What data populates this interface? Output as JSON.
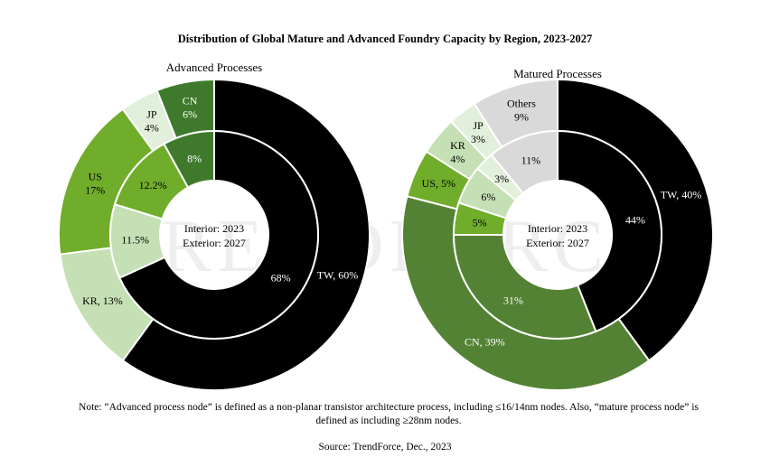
{
  "chart_data": {
    "type": "donut",
    "title": "Distribution of Global Mature and Advanced Foundry Capacity by Region, 2023-2027",
    "charts": [
      {
        "subtitle": "Advanced Processes",
        "center_line1": "Interior: 2023",
        "center_line2": "Exterior: 2027",
        "inner": [
          {
            "name": "TW",
            "value": 68,
            "label": "68%",
            "color": "#000000",
            "text_color": "#ffffff"
          },
          {
            "name": "KR",
            "value": 11.5,
            "label": "11.5%",
            "color": "#c5e0b4",
            "text_color": "#000000"
          },
          {
            "name": "US",
            "value": 12.2,
            "label": "12.2%",
            "color": "#70ad2a",
            "text_color": "#000000"
          },
          {
            "name": "CN",
            "value": 8,
            "label": "8%",
            "color": "#3f7a2c",
            "text_color": "#ffffff"
          }
        ],
        "outer": [
          {
            "name": "TW",
            "value": 60,
            "label": "TW, 60%",
            "color": "#000000",
            "text_color": "#ffffff"
          },
          {
            "name": "KR",
            "value": 13,
            "label": "KR, 13%",
            "color": "#c5e0b4",
            "text_color": "#000000"
          },
          {
            "name": "US",
            "value": 17,
            "label": "US\n17%",
            "color": "#70ad2a",
            "text_color": "#000000"
          },
          {
            "name": "JP",
            "value": 4,
            "label": "JP\n4%",
            "color": "#e2efda",
            "text_color": "#000000"
          },
          {
            "name": "CN",
            "value": 6,
            "label": "CN\n6%",
            "color": "#3f7a2c",
            "text_color": "#ffffff"
          }
        ]
      },
      {
        "subtitle": "Matured Processes",
        "center_line1": "Interior: 2023",
        "center_line2": "Exterior: 2027",
        "inner": [
          {
            "name": "TW",
            "value": 44,
            "label": "44%",
            "color": "#000000",
            "text_color": "#ffffff"
          },
          {
            "name": "CN",
            "value": 31,
            "label": "31%",
            "color": "#548235",
            "text_color": "#ffffff"
          },
          {
            "name": "US",
            "value": 5,
            "label": "5%",
            "color": "#70ad2a",
            "text_color": "#000000"
          },
          {
            "name": "KR",
            "value": 6,
            "label": "6%",
            "color": "#c5e0b4",
            "text_color": "#000000"
          },
          {
            "name": "JP",
            "value": 3,
            "label": "3%",
            "color": "#e2efda",
            "text_color": "#000000"
          },
          {
            "name": "Others",
            "value": 11,
            "label": "11%",
            "color": "#d9d9d9",
            "text_color": "#000000"
          }
        ],
        "outer": [
          {
            "name": "TW",
            "value": 40,
            "label": "TW, 40%",
            "color": "#000000",
            "text_color": "#ffffff"
          },
          {
            "name": "CN",
            "value": 39,
            "label": "CN, 39%",
            "color": "#548235",
            "text_color": "#ffffff"
          },
          {
            "name": "US",
            "value": 5,
            "label": "US, 5%",
            "color": "#70ad2a",
            "text_color": "#000000"
          },
          {
            "name": "KR",
            "value": 4,
            "label": "KR\n4%",
            "color": "#c5e0b4",
            "text_color": "#000000"
          },
          {
            "name": "JP",
            "value": 3,
            "label": "JP\n3%",
            "color": "#e2efda",
            "text_color": "#000000"
          },
          {
            "name": "Others",
            "value": 9,
            "label": "Others\n9%",
            "color": "#d9d9d9",
            "text_color": "#000000"
          }
        ]
      }
    ]
  },
  "watermark": "TRENDFORCE",
  "note": "Note: “Advanced process node” is defined as a non-planar transistor architecture process, including ≤16/14nm nodes. Also, “mature process node” is defined as including ≥28nm nodes.",
  "source": "Source: TrendForce, Dec., 2023"
}
